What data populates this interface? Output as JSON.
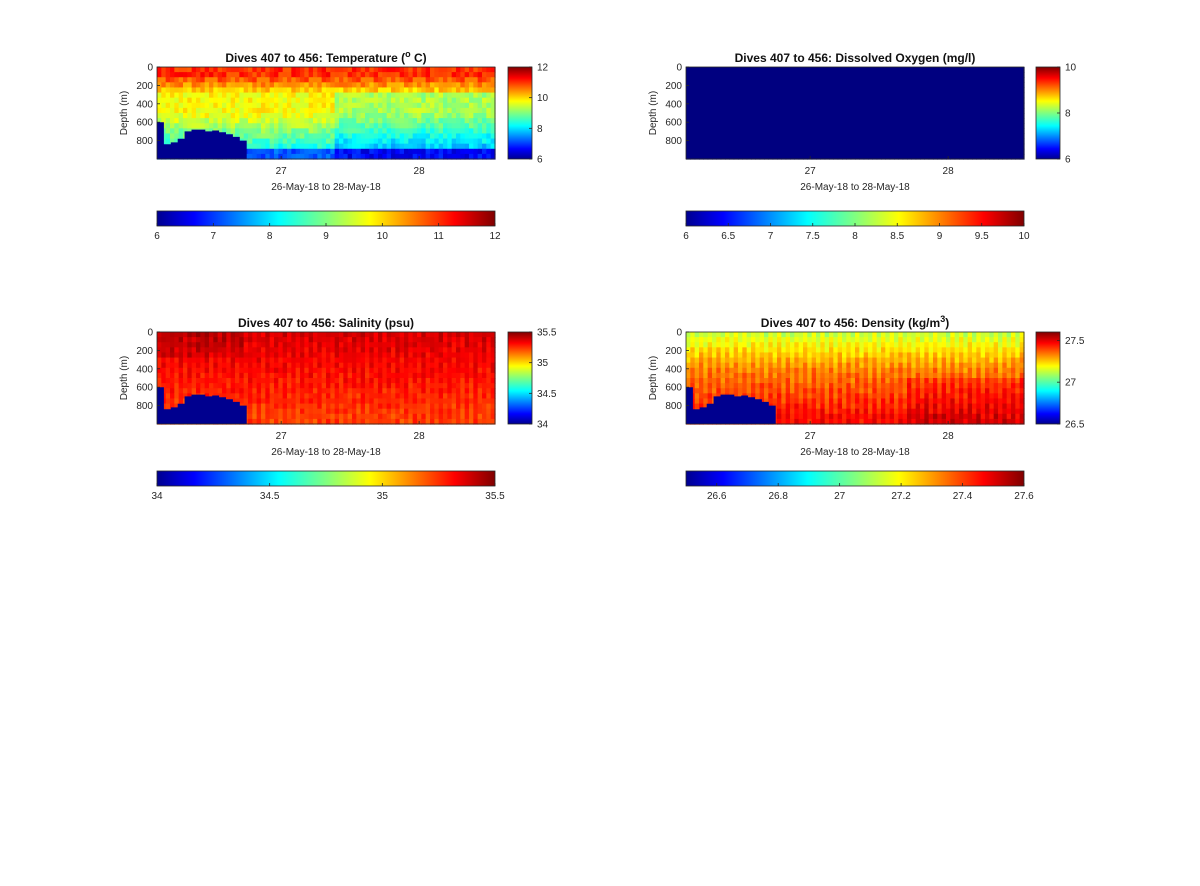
{
  "chart_data": [
    {
      "type": "heatmap",
      "title": "Dives 407 to 456: Temperature (°C)",
      "title_parts": [
        "Dives 407 to 456: Temperature (",
        "o",
        " C)"
      ],
      "title_sup": "o",
      "xlabel": "26-May-18 to 28-May-18",
      "ylabel": "Depth (m)",
      "x_ticks": [
        "27",
        "28"
      ],
      "x_range": [
        "26.1",
        "28.55"
      ],
      "y_ticks": [
        "0",
        "200",
        "400",
        "600",
        "800"
      ],
      "ylim": [
        0,
        1000
      ],
      "y_reversed": true,
      "colormap": "jet",
      "side_colorbar": {
        "range": [
          6,
          12
        ],
        "ticks": [
          "12",
          "10",
          "8",
          "6"
        ]
      },
      "bottom_colorbar": {
        "range": [
          6,
          12
        ],
        "ticks": [
          "6",
          "7",
          "8",
          "9",
          "10",
          "11",
          "12"
        ]
      },
      "field_description": {
        "surface_layer_0_100m": [
          10.5,
          11.5
        ],
        "mid_layer_200_500m": [
          9.5,
          10.0
        ],
        "deep_layer_600_900m": [
          8.0,
          8.6
        ],
        "bottom_layer_900_1000m": [
          7.0,
          7.5
        ]
      },
      "seafloor_profile": {
        "x_days": [
          26.1,
          26.15,
          26.2,
          26.25,
          26.3,
          26.35,
          26.4,
          26.45,
          26.5,
          26.55,
          26.6,
          26.65,
          26.7
        ],
        "top_depth_m": [
          600,
          840,
          820,
          780,
          700,
          680,
          680,
          700,
          690,
          710,
          730,
          760,
          800
        ]
      }
    },
    {
      "type": "heatmap",
      "title": "Dives 407 to 456: Dissolved Oxygen (mg/l)",
      "title_parts": [
        "Dives 407 to 456: Dissolved Oxygen (mg/l)"
      ],
      "title_sup": "",
      "xlabel": "26-May-18 to 28-May-18",
      "ylabel": "Depth (m)",
      "x_ticks": [
        "27",
        "28"
      ],
      "x_range": [
        "26.1",
        "28.55"
      ],
      "y_ticks": [
        "0",
        "200",
        "400",
        "600",
        "800"
      ],
      "ylim": [
        0,
        1000
      ],
      "y_reversed": true,
      "colormap": "jet",
      "side_colorbar": {
        "range": [
          6,
          10
        ],
        "ticks": [
          "10",
          "8",
          "6"
        ]
      },
      "bottom_colorbar": {
        "range": [
          6,
          10
        ],
        "ticks": [
          "6",
          "6.5",
          "7",
          "7.5",
          "8",
          "8.5",
          "9",
          "9.5",
          "10"
        ]
      },
      "field_description": {
        "uniform_value": 6
      },
      "seafloor_profile": null
    },
    {
      "type": "heatmap",
      "title": "Dives 407 to 456: Salinity (psu)",
      "title_parts": [
        "Dives 407 to 456: Salinity (psu)"
      ],
      "title_sup": "",
      "xlabel": "26-May-18 to 28-May-18",
      "ylabel": "Depth (m)",
      "x_ticks": [
        "27",
        "28"
      ],
      "x_range": [
        "26.1",
        "28.55"
      ],
      "y_ticks": [
        "0",
        "200",
        "400",
        "600",
        "800"
      ],
      "ylim": [
        0,
        1000
      ],
      "y_reversed": true,
      "colormap": "jet",
      "side_colorbar": {
        "range": [
          34,
          35.5
        ],
        "ticks": [
          "35.5",
          "35",
          "34.5",
          "34"
        ]
      },
      "bottom_colorbar": {
        "range": [
          34,
          35.5
        ],
        "ticks": [
          "34",
          "34.5",
          "35",
          "35.5"
        ]
      },
      "field_description": {
        "upper_layer": [
          35.35,
          35.45
        ],
        "lower_layer": [
          35.2,
          35.3
        ]
      },
      "seafloor_profile": {
        "x_days": [
          26.1,
          26.15,
          26.2,
          26.25,
          26.3,
          26.35,
          26.4,
          26.45,
          26.5,
          26.55,
          26.6,
          26.65,
          26.7
        ],
        "top_depth_m": [
          600,
          840,
          820,
          780,
          700,
          680,
          680,
          700,
          690,
          710,
          730,
          760,
          800
        ]
      }
    },
    {
      "type": "heatmap",
      "title": "Dives 407 to 456: Density (kg/m³)",
      "title_parts": [
        "Dives 407 to 456: Density (kg/m",
        "3",
        ")"
      ],
      "title_sup": "3",
      "xlabel": "26-May-18 to 28-May-18",
      "ylabel": "Depth (m)",
      "x_ticks": [
        "27",
        "28"
      ],
      "x_range": [
        "26.1",
        "28.55"
      ],
      "y_ticks": [
        "0",
        "200",
        "400",
        "600",
        "800"
      ],
      "ylim": [
        0,
        1000
      ],
      "y_reversed": true,
      "colormap": "jet",
      "side_colorbar": {
        "range": [
          26.5,
          27.6
        ],
        "ticks": [
          "27.5",
          "27",
          "26.5"
        ]
      },
      "bottom_colorbar": {
        "range": [
          26.5,
          27.6
        ],
        "ticks": [
          "26.6",
          "26.8",
          "27",
          "27.2",
          "27.4",
          "27.6"
        ]
      },
      "field_description": {
        "surface": [
          27.1,
          27.2
        ],
        "mid": [
          27.3,
          27.4
        ],
        "deep": [
          27.45,
          27.55
        ]
      },
      "seafloor_profile": {
        "x_days": [
          26.1,
          26.15,
          26.2,
          26.25,
          26.3,
          26.35,
          26.4,
          26.45,
          26.5,
          26.55,
          26.6,
          26.65,
          26.7
        ],
        "top_depth_m": [
          600,
          840,
          820,
          780,
          700,
          680,
          680,
          700,
          690,
          710,
          730,
          760,
          800
        ]
      }
    }
  ]
}
